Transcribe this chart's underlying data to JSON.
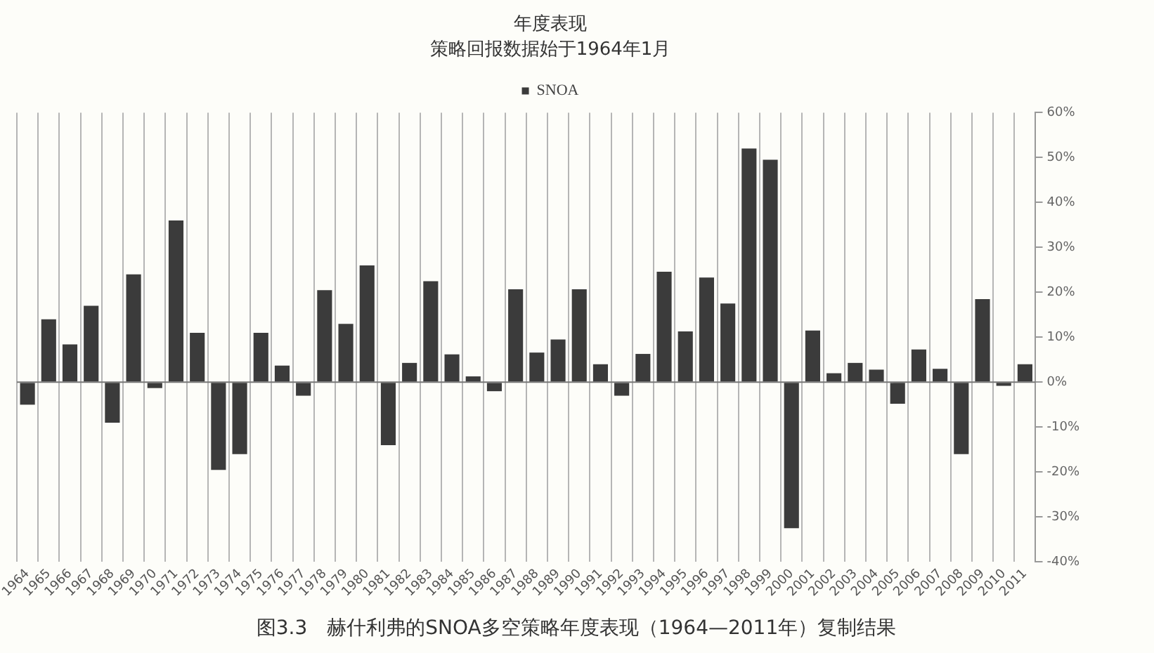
{
  "chart_data": {
    "type": "bar",
    "title": "年度表现",
    "subtitle": "策略回报数据始于1964年1月",
    "categories": [
      "1964",
      "1965",
      "1966",
      "1967",
      "1968",
      "1969",
      "1970",
      "1971",
      "1972",
      "1973",
      "1974",
      "1975",
      "1976",
      "1977",
      "1978",
      "1979",
      "1980",
      "1981",
      "1982",
      "1983",
      "1984",
      "1985",
      "1986",
      "1987",
      "1988",
      "1989",
      "1990",
      "1991",
      "1992",
      "1993",
      "1994",
      "1995",
      "1996",
      "1997",
      "1998",
      "1999",
      "2000",
      "2001",
      "2002",
      "2003",
      "2004",
      "2005",
      "2006",
      "2007",
      "2008",
      "2009",
      "2010",
      "2011"
    ],
    "series": [
      {
        "name": "SNOA",
        "color": "#3b3b3b",
        "values": [
          -5,
          14,
          8.4,
          17,
          -9,
          24,
          -1.3,
          36,
          11,
          -19.5,
          -16,
          11,
          3.7,
          -3,
          20.5,
          13,
          26,
          -14,
          4.3,
          22.5,
          6.2,
          1.3,
          -2,
          20.7,
          6.6,
          9.5,
          20.7,
          4,
          -3,
          6.3,
          24.6,
          11.3,
          23.3,
          17.5,
          52,
          49.5,
          -32.5,
          11.5,
          2,
          4.3,
          2.8,
          -4.8,
          7.3,
          3,
          -16,
          18.5,
          -0.8,
          4
        ]
      }
    ],
    "ylim": [
      -40,
      60
    ],
    "yticks": [
      {
        "value": -40,
        "label": "-40%"
      },
      {
        "value": -30,
        "label": "-30%"
      },
      {
        "value": -20,
        "label": "-20%"
      },
      {
        "value": -10,
        "label": "-10%"
      },
      {
        "value": 0,
        "label": "0%"
      },
      {
        "value": 10,
        "label": "10%"
      },
      {
        "value": 20,
        "label": "20%"
      },
      {
        "value": 30,
        "label": "30%"
      },
      {
        "value": 40,
        "label": "40%"
      },
      {
        "value": 50,
        "label": "50%"
      },
      {
        "value": 60,
        "label": "60%"
      }
    ],
    "grid": "x",
    "legend": "top",
    "annotations": [
      "图3.3　赫什利弗的SNOA多空策略年度表现（1964—2011年）复制结果"
    ]
  }
}
